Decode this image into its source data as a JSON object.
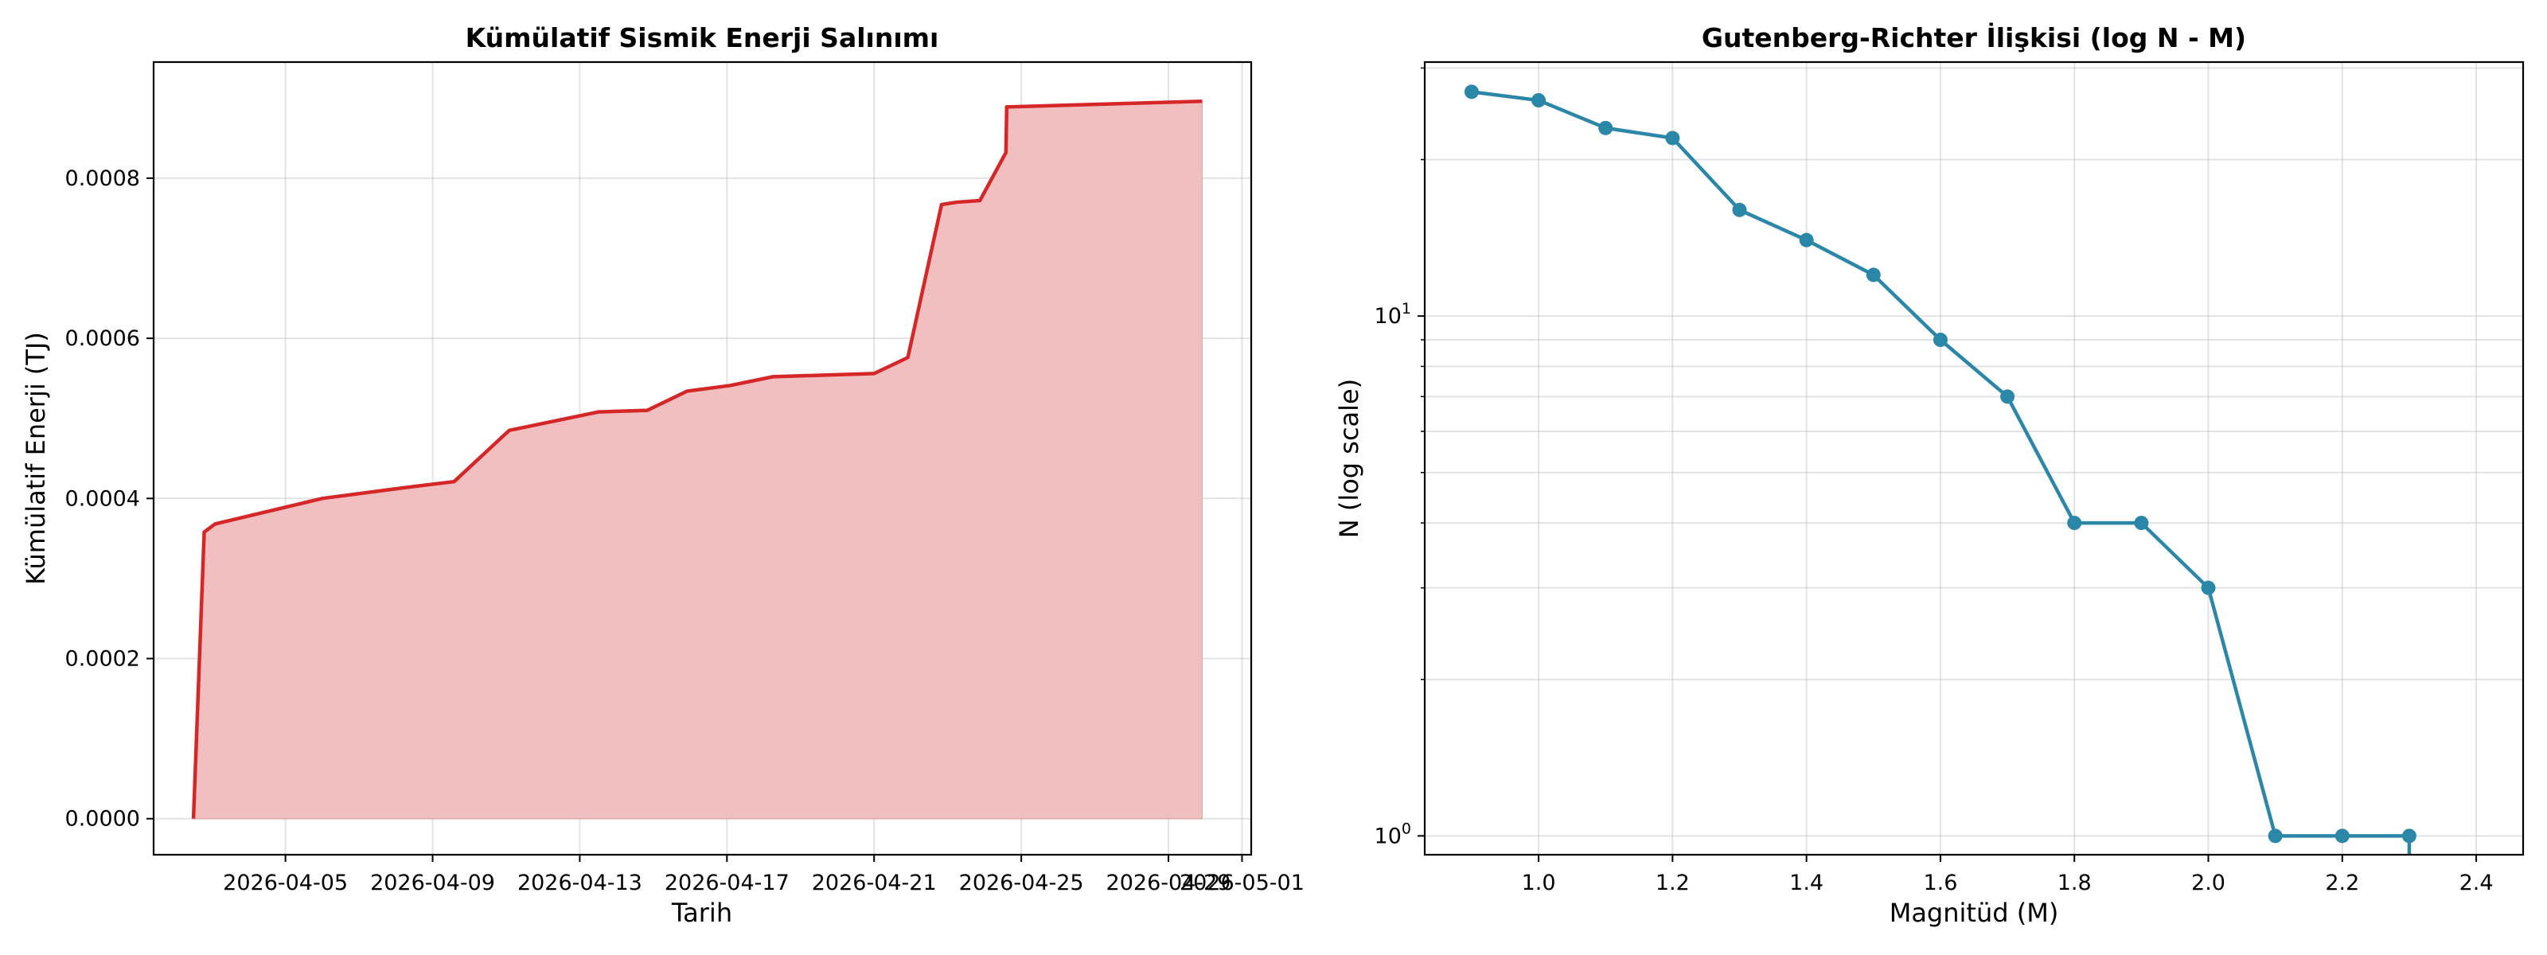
{
  "chart_data": [
    {
      "type": "area",
      "title": "Kümülatif Sismik Enerji Salınımı",
      "xlabel": "Tarih",
      "ylabel": "Kümülatif Enerji (TJ)",
      "color": "#d62728",
      "fill_color": "#f2bfc0",
      "grid": true,
      "xlim": [
        "2026-04-01 10:00",
        "2026-05-01 06:00"
      ],
      "ylim": [
        -4.5e-05,
        0.000945
      ],
      "x_ticks": [
        "2026-04-05",
        "2026-04-09",
        "2026-04-13",
        "2026-04-17",
        "2026-04-21",
        "2026-04-25",
        "2026-04-29",
        "2026-05-01"
      ],
      "y_ticks": [
        "0.0000",
        "0.0002",
        "0.0004",
        "0.0006",
        "0.0008"
      ],
      "x": [
        "2026-04-02 12:00",
        "2026-04-02 19:00",
        "2026-04-03 02:00",
        "2026-04-06 00:00",
        "2026-04-08 12:00",
        "2026-04-09 14:00",
        "2026-04-11 02:00",
        "2026-04-13 12:00",
        "2026-04-14 20:00",
        "2026-04-15 22:00",
        "2026-04-17 02:00",
        "2026-04-18 06:00",
        "2026-04-21 00:00",
        "2026-04-21 22:00",
        "2026-04-22 20:00",
        "2026-04-23 06:00",
        "2026-04-23 21:00",
        "2026-04-24 14:00",
        "2026-04-24 14:30",
        "2026-04-29 22:00"
      ],
      "y": [
        0.0,
        0.000358,
        0.000368,
        0.0004,
        0.000415,
        0.000421,
        0.000485,
        0.000508,
        0.00051,
        0.000534,
        0.000541,
        0.000552,
        0.000556,
        0.000576,
        0.000767,
        0.00077,
        0.000772,
        0.000832,
        0.000889,
        0.000896
      ]
    },
    {
      "type": "line",
      "title": "Gutenberg-Richter İlişkisi (log N - M)",
      "xlabel": "Magnitüd (M)",
      "ylabel": "N (log scale)",
      "color": "#2b87a8",
      "grid": true,
      "y_scale": "log",
      "xlim": [
        0.83,
        2.47
      ],
      "ylim": [
        0.92,
        30.8
      ],
      "x_ticks": [
        "1.0",
        "1.2",
        "1.4",
        "1.6",
        "1.8",
        "2.0",
        "2.2",
        "2.4"
      ],
      "y_ticks": [
        "10^0",
        "10^1"
      ],
      "x": [
        0.9,
        1.0,
        1.1,
        1.2,
        1.3,
        1.4,
        1.5,
        1.6,
        1.7,
        1.8,
        1.9,
        2.0,
        2.1,
        2.2,
        2.3,
        2.3
      ],
      "y": [
        27,
        26,
        23,
        22,
        16,
        14,
        12,
        9,
        7,
        4,
        4,
        3,
        1,
        1,
        1,
        0.92
      ]
    }
  ]
}
